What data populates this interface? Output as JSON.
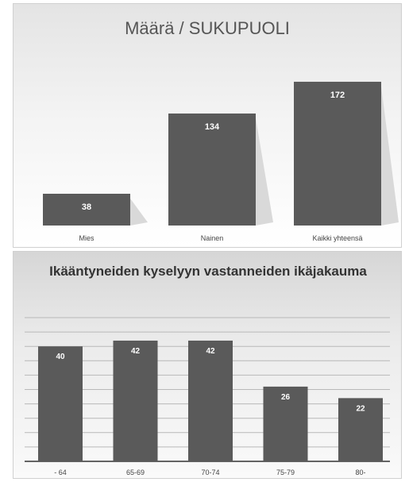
{
  "chart_data": [
    {
      "type": "bar",
      "title": "Määrä  / SUKUPUOLI",
      "categories": [
        "Mies",
        "Nainen",
        "Kaikki yhteensä"
      ],
      "values": [
        38,
        134,
        172
      ],
      "data_labels": [
        "38",
        "134",
        "172"
      ],
      "xlabel": "",
      "ylabel": "",
      "ylim": [
        0,
        190
      ],
      "grid": false,
      "legend": "none",
      "bar_color": "#5a5a5a"
    },
    {
      "type": "bar",
      "title": "Ikääntyneiden kyselyyn vastanneiden ikäjakauma",
      "categories": [
        "- 64",
        "65-69",
        "70-74",
        "75-79",
        "80-"
      ],
      "values": [
        40,
        42,
        42,
        26,
        22
      ],
      "data_labels": [
        "40",
        "42",
        "42",
        "26",
        "22"
      ],
      "xlabel": "",
      "ylabel": "",
      "ylim": [
        0,
        50
      ],
      "grid": true,
      "legend": "none",
      "bar_color": "#5a5a5a"
    }
  ]
}
